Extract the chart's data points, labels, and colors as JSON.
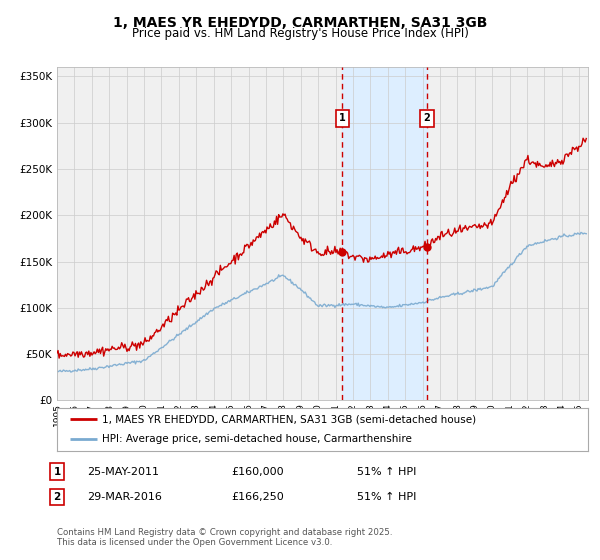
{
  "title": "1, MAES YR EHEDYDD, CARMARTHEN, SA31 3GB",
  "subtitle": "Price paid vs. HM Land Registry's House Price Index (HPI)",
  "ylim": [
    0,
    360000
  ],
  "yticks": [
    0,
    50000,
    100000,
    150000,
    200000,
    250000,
    300000,
    350000
  ],
  "ytick_labels": [
    "£0",
    "£50K",
    "£100K",
    "£150K",
    "£200K",
    "£250K",
    "£300K",
    "£350K"
  ],
  "xlim_start": 1995.0,
  "xlim_end": 2025.5,
  "sale1_date": 2011.39,
  "sale1_price": 160000,
  "sale2_date": 2016.25,
  "sale2_price": 166250,
  "sale1_date_str": "25-MAY-2011",
  "sale1_price_str": "£160,000",
  "sale1_hpi": "51% ↑ HPI",
  "sale2_date_str": "29-MAR-2016",
  "sale2_price_str": "£166,250",
  "sale2_hpi": "51% ↑ HPI",
  "house_color": "#cc0000",
  "hpi_color": "#7aaad0",
  "shade_color": "#ddeeff",
  "grid_color": "#cccccc",
  "bg_color": "#f0f0f0",
  "legend1": "1, MAES YR EHEDYDD, CARMARTHEN, SA31 3GB (semi-detached house)",
  "legend2": "HPI: Average price, semi-detached house, Carmarthenshire",
  "footnote": "Contains HM Land Registry data © Crown copyright and database right 2025.\nThis data is licensed under the Open Government Licence v3.0."
}
